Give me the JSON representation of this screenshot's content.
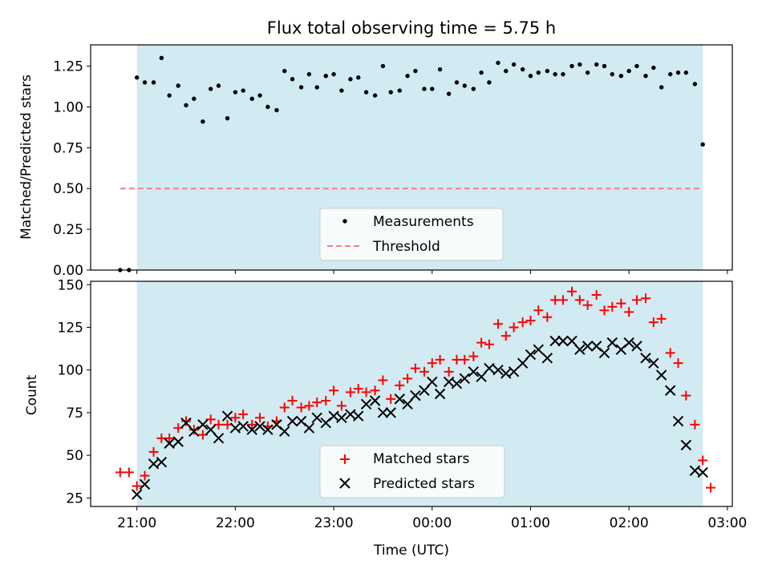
{
  "figure": {
    "background": "#ffffff",
    "shade_color": "#add8e6",
    "shade_opacity": 0.55,
    "time_ticks": [
      "21:00",
      "22:00",
      "23:00",
      "00:00",
      "01:00",
      "02:00",
      "03:00"
    ]
  },
  "chart_data": [
    {
      "type": "scatter",
      "title": "Flux total observing time = 5.75 h",
      "xlabel": "",
      "ylabel": "Matched/Predicted stars",
      "x_unit": "hours after 21:00 UTC",
      "xlim": [
        -0.47,
        6.05
      ],
      "ylim": [
        0,
        1.38
      ],
      "yticks": [
        "0.00",
        "0.25",
        "0.50",
        "0.75",
        "1.00",
        "1.25"
      ],
      "grid": false,
      "legend_position": "lower center",
      "observing_window": [
        0,
        5.75
      ],
      "threshold": {
        "name": "Threshold",
        "value": 0.5,
        "x_range": [
          -0.17,
          5.75
        ],
        "color": "#f08080",
        "style": "dashed"
      },
      "series": [
        {
          "name": "Measurements",
          "color": "#000000",
          "marker": "dot",
          "points": [
            [
              -0.17,
              0.0
            ],
            [
              -0.08,
              0.0
            ],
            [
              0.0,
              1.18
            ],
            [
              0.08,
              1.15
            ],
            [
              0.17,
              1.15
            ],
            [
              0.25,
              1.3
            ],
            [
              0.33,
              1.07
            ],
            [
              0.42,
              1.13
            ],
            [
              0.5,
              1.01
            ],
            [
              0.58,
              1.05
            ],
            [
              0.67,
              0.91
            ],
            [
              0.75,
              1.11
            ],
            [
              0.83,
              1.13
            ],
            [
              0.92,
              0.93
            ],
            [
              1.0,
              1.09
            ],
            [
              1.08,
              1.1
            ],
            [
              1.17,
              1.05
            ],
            [
              1.25,
              1.07
            ],
            [
              1.33,
              1.0
            ],
            [
              1.42,
              0.98
            ],
            [
              1.5,
              1.22
            ],
            [
              1.58,
              1.17
            ],
            [
              1.67,
              1.12
            ],
            [
              1.75,
              1.2
            ],
            [
              1.83,
              1.12
            ],
            [
              1.92,
              1.19
            ],
            [
              2.0,
              1.2
            ],
            [
              2.08,
              1.1
            ],
            [
              2.17,
              1.17
            ],
            [
              2.25,
              1.18
            ],
            [
              2.33,
              1.09
            ],
            [
              2.42,
              1.07
            ],
            [
              2.5,
              1.25
            ],
            [
              2.58,
              1.09
            ],
            [
              2.67,
              1.1
            ],
            [
              2.75,
              1.19
            ],
            [
              2.83,
              1.22
            ],
            [
              2.92,
              1.11
            ],
            [
              3.0,
              1.11
            ],
            [
              3.08,
              1.23
            ],
            [
              3.17,
              1.08
            ],
            [
              3.25,
              1.15
            ],
            [
              3.33,
              1.13
            ],
            [
              3.42,
              1.11
            ],
            [
              3.5,
              1.21
            ],
            [
              3.58,
              1.15
            ],
            [
              3.67,
              1.27
            ],
            [
              3.75,
              1.22
            ],
            [
              3.83,
              1.26
            ],
            [
              3.92,
              1.23
            ],
            [
              4.0,
              1.19
            ],
            [
              4.08,
              1.21
            ],
            [
              4.17,
              1.22
            ],
            [
              4.25,
              1.2
            ],
            [
              4.33,
              1.2
            ],
            [
              4.42,
              1.25
            ],
            [
              4.5,
              1.26
            ],
            [
              4.58,
              1.21
            ],
            [
              4.67,
              1.26
            ],
            [
              4.75,
              1.25
            ],
            [
              4.83,
              1.2
            ],
            [
              4.92,
              1.19
            ],
            [
              5.0,
              1.22
            ],
            [
              5.08,
              1.25
            ],
            [
              5.17,
              1.19
            ],
            [
              5.25,
              1.24
            ],
            [
              5.33,
              1.12
            ],
            [
              5.42,
              1.2
            ],
            [
              5.5,
              1.21
            ],
            [
              5.58,
              1.21
            ],
            [
              5.67,
              1.14
            ],
            [
              5.75,
              0.77
            ]
          ]
        }
      ]
    },
    {
      "type": "scatter",
      "title": "",
      "xlabel": "Time (UTC)",
      "ylabel": "Count",
      "x_unit": "hours after 21:00 UTC",
      "xlim": [
        -0.47,
        6.05
      ],
      "ylim": [
        20,
        152
      ],
      "yticks": [
        "25",
        "50",
        "75",
        "100",
        "125",
        "150"
      ],
      "xticks": [
        "21:00",
        "22:00",
        "23:00",
        "00:00",
        "01:00",
        "02:00",
        "03:00"
      ],
      "grid": false,
      "legend_position": "lower center",
      "observing_window": [
        0,
        5.75
      ],
      "series": [
        {
          "name": "Matched stars",
          "color": "#ff0000",
          "marker": "plus",
          "points": [
            [
              -0.17,
              40
            ],
            [
              -0.08,
              40
            ],
            [
              0.0,
              32
            ],
            [
              0.08,
              38
            ],
            [
              0.17,
              52
            ],
            [
              0.25,
              60
            ],
            [
              0.33,
              60
            ],
            [
              0.42,
              66
            ],
            [
              0.5,
              70
            ],
            [
              0.58,
              65
            ],
            [
              0.67,
              62
            ],
            [
              0.75,
              71
            ],
            [
              0.83,
              68
            ],
            [
              0.92,
              68
            ],
            [
              1.0,
              72
            ],
            [
              1.08,
              74
            ],
            [
              1.17,
              68
            ],
            [
              1.25,
              72
            ],
            [
              1.33,
              67
            ],
            [
              1.42,
              70
            ],
            [
              1.5,
              78
            ],
            [
              1.58,
              82
            ],
            [
              1.67,
              78
            ],
            [
              1.75,
              79
            ],
            [
              1.83,
              81
            ],
            [
              1.92,
              82
            ],
            [
              2.0,
              88
            ],
            [
              2.08,
              79
            ],
            [
              2.17,
              87
            ],
            [
              2.25,
              89
            ],
            [
              2.33,
              87
            ],
            [
              2.42,
              88
            ],
            [
              2.5,
              94
            ],
            [
              2.58,
              83
            ],
            [
              2.67,
              91
            ],
            [
              2.75,
              95
            ],
            [
              2.83,
              101
            ],
            [
              2.92,
              99
            ],
            [
              3.0,
              104
            ],
            [
              3.08,
              106
            ],
            [
              3.17,
              99
            ],
            [
              3.25,
              106
            ],
            [
              3.33,
              106
            ],
            [
              3.42,
              108
            ],
            [
              3.5,
              116
            ],
            [
              3.58,
              115
            ],
            [
              3.67,
              127
            ],
            [
              3.75,
              120
            ],
            [
              3.83,
              125
            ],
            [
              3.92,
              128
            ],
            [
              4.0,
              129
            ],
            [
              4.08,
              135
            ],
            [
              4.17,
              131
            ],
            [
              4.25,
              141
            ],
            [
              4.33,
              141
            ],
            [
              4.42,
              146
            ],
            [
              4.5,
              141
            ],
            [
              4.58,
              138
            ],
            [
              4.67,
              144
            ],
            [
              4.75,
              135
            ],
            [
              4.83,
              137
            ],
            [
              4.92,
              139
            ],
            [
              5.0,
              134
            ],
            [
              5.08,
              141
            ],
            [
              5.17,
              142
            ],
            [
              5.25,
              128
            ],
            [
              5.33,
              130
            ],
            [
              5.42,
              110
            ],
            [
              5.5,
              104
            ],
            [
              5.58,
              85
            ],
            [
              5.67,
              68
            ],
            [
              5.75,
              47
            ],
            [
              5.83,
              31
            ]
          ]
        },
        {
          "name": "Predicted stars",
          "color": "#000000",
          "marker": "x",
          "points": [
            [
              0.0,
              27
            ],
            [
              0.08,
              33
            ],
            [
              0.17,
              45
            ],
            [
              0.25,
              46
            ],
            [
              0.33,
              57
            ],
            [
              0.42,
              58
            ],
            [
              0.5,
              69
            ],
            [
              0.58,
              64
            ],
            [
              0.67,
              68
            ],
            [
              0.75,
              65
            ],
            [
              0.83,
              60
            ],
            [
              0.92,
              73
            ],
            [
              1.0,
              66
            ],
            [
              1.08,
              67
            ],
            [
              1.17,
              65
            ],
            [
              1.25,
              67
            ],
            [
              1.33,
              65
            ],
            [
              1.42,
              68
            ],
            [
              1.5,
              64
            ],
            [
              1.58,
              70
            ],
            [
              1.67,
              70
            ],
            [
              1.75,
              66
            ],
            [
              1.83,
              72
            ],
            [
              1.92,
              69
            ],
            [
              2.0,
              73
            ],
            [
              2.08,
              72
            ],
            [
              2.17,
              74
            ],
            [
              2.25,
              73
            ],
            [
              2.33,
              80
            ],
            [
              2.42,
              82
            ],
            [
              2.5,
              75
            ],
            [
              2.58,
              75
            ],
            [
              2.67,
              83
            ],
            [
              2.75,
              80
            ],
            [
              2.83,
              85
            ],
            [
              2.92,
              88
            ],
            [
              3.0,
              93
            ],
            [
              3.08,
              86
            ],
            [
              3.17,
              93
            ],
            [
              3.25,
              92
            ],
            [
              3.33,
              95
            ],
            [
              3.42,
              99
            ],
            [
              3.5,
              96
            ],
            [
              3.58,
              101
            ],
            [
              3.67,
              100
            ],
            [
              3.75,
              98
            ],
            [
              3.83,
              99
            ],
            [
              3.92,
              104
            ],
            [
              4.0,
              109
            ],
            [
              4.08,
              112
            ],
            [
              4.17,
              107
            ],
            [
              4.25,
              117
            ],
            [
              4.33,
              117
            ],
            [
              4.42,
              117
            ],
            [
              4.5,
              112
            ],
            [
              4.58,
              114
            ],
            [
              4.67,
              114
            ],
            [
              4.75,
              110
            ],
            [
              4.83,
              116
            ],
            [
              4.92,
              112
            ],
            [
              5.0,
              116
            ],
            [
              5.08,
              114
            ],
            [
              5.17,
              107
            ],
            [
              5.25,
              104
            ],
            [
              5.33,
              97
            ],
            [
              5.42,
              88
            ],
            [
              5.5,
              70
            ],
            [
              5.58,
              56
            ],
            [
              5.67,
              41
            ],
            [
              5.75,
              40
            ]
          ]
        }
      ]
    }
  ]
}
